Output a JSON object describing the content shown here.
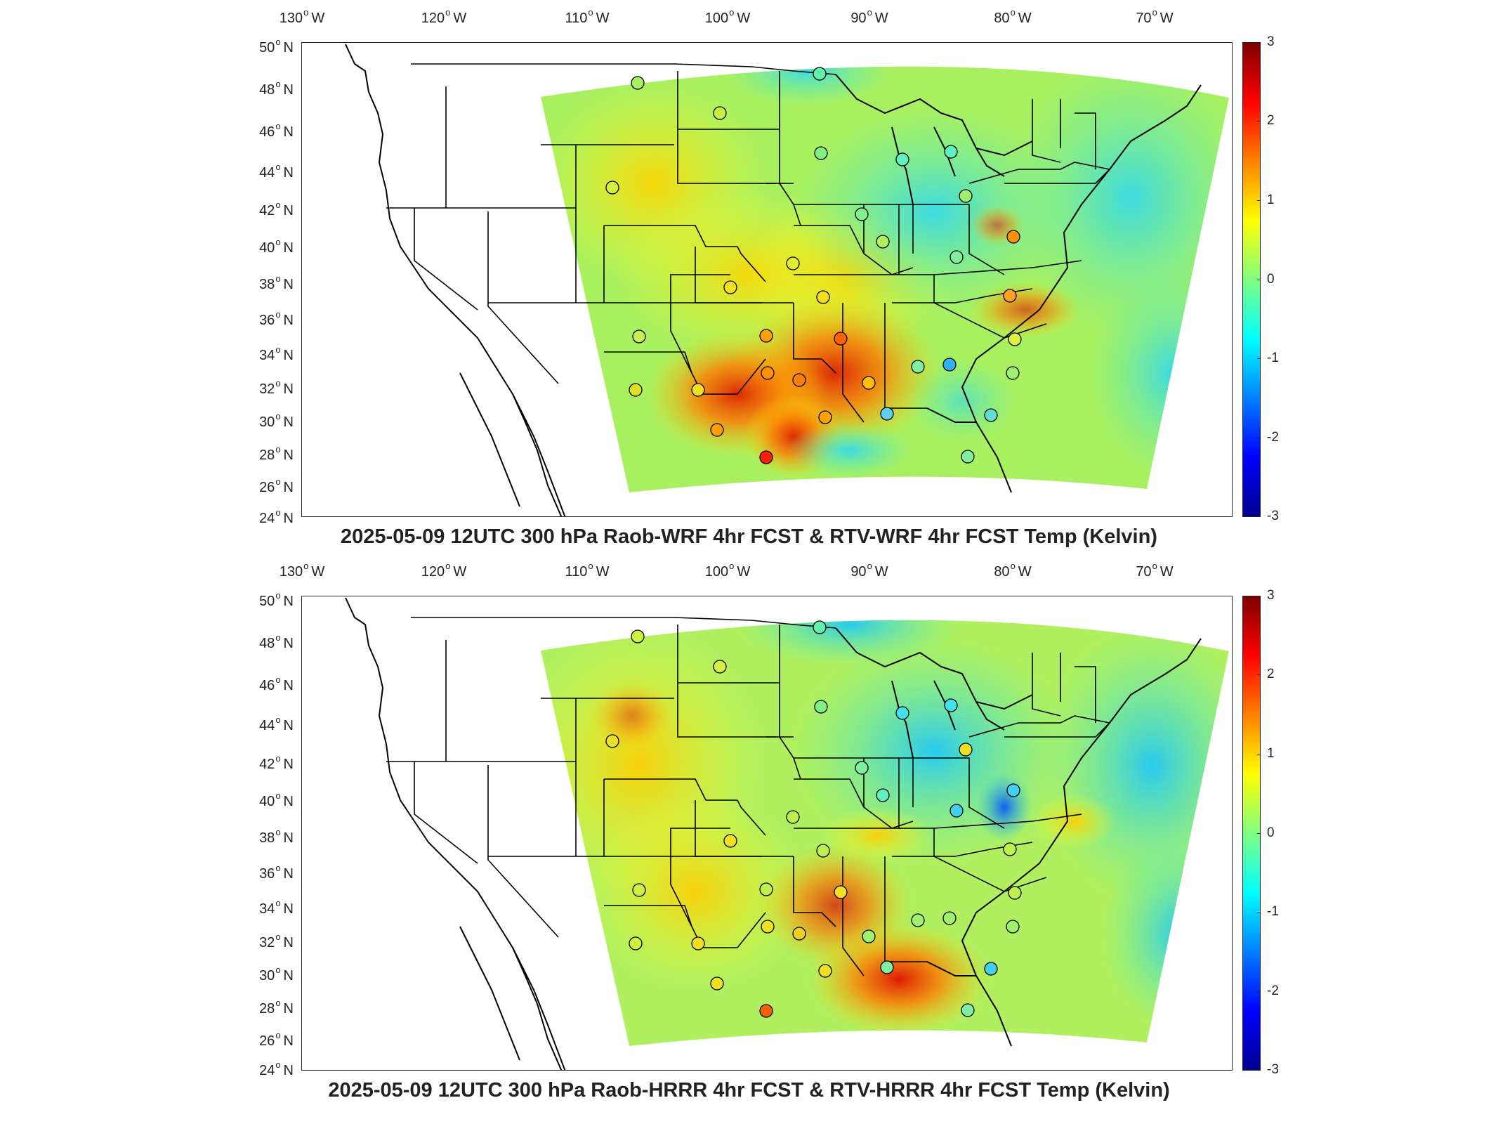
{
  "colorbar": {
    "ticks": [
      "3",
      "2",
      "1",
      "0",
      "-1",
      "-2",
      "-3"
    ],
    "colors": [
      "#7f0000",
      "#ff0000",
      "#ff8000",
      "#ffff00",
      "#80ff80",
      "#00ffff",
      "#0080ff",
      "#0000ff",
      "#00008f"
    ]
  },
  "longitude_labels": [
    "130",
    "120",
    "110",
    "100",
    "90",
    "80",
    "70"
  ],
  "longitude_suffix": "W",
  "latitude_labels": [
    "50",
    "48",
    "46",
    "44",
    "42",
    "40",
    "38",
    "36",
    "34",
    "32",
    "30",
    "28",
    "26",
    "24"
  ],
  "latitude_suffix": "N",
  "panels": [
    {
      "title": "2025-05-09 12UTC 300 hPa Raob-WRF 4hr FCST & RTV-WRF 4hr FCST Temp (Kelvin)"
    },
    {
      "title": "2025-05-09 12UTC 300 hPa Raob-HRRR 4hr FCST & RTV-HRRR 4hr FCST Temp (Kelvin)"
    }
  ]
}
